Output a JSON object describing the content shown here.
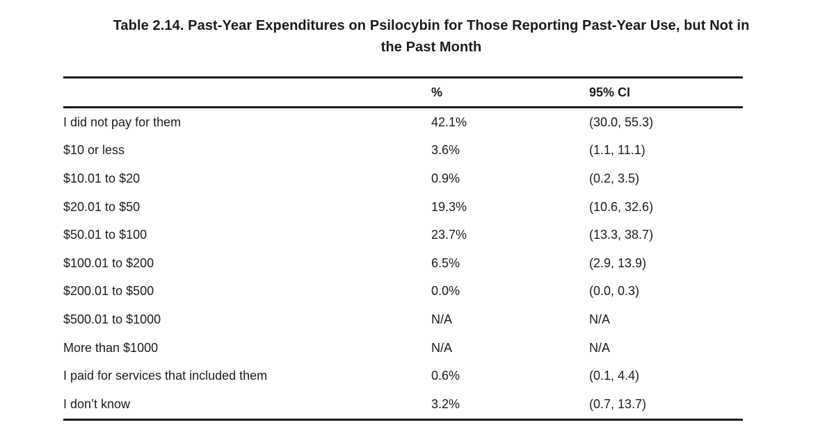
{
  "title": {
    "line1": "Table 2.14. Past-Year Expenditures on Psilocybin for Those Reporting Past-Year Use, but Not in",
    "line2": "the Past Month",
    "full": "Table 2.14. Past-Year Expenditures on Psilocybin for Those Reporting Past-Year Use, but Not in the Past Month"
  },
  "table": {
    "columns": {
      "label": "",
      "pct": "%",
      "ci": "95% CI"
    },
    "rows": [
      {
        "label": "I did not pay for them",
        "pct": "42.1%",
        "ci": "(30.0, 55.3)"
      },
      {
        "label": "$10 or less",
        "pct": "3.6%",
        "ci": "(1.1, 11.1)"
      },
      {
        "label": "$10.01 to $20",
        "pct": "0.9%",
        "ci": "(0.2, 3.5)"
      },
      {
        "label": "$20.01 to $50",
        "pct": "19.3%",
        "ci": "(10.6, 32.6)"
      },
      {
        "label": "$50.01 to $100",
        "pct": "23.7%",
        "ci": "(13.3, 38.7)"
      },
      {
        "label": "$100.01 to $200",
        "pct": "6.5%",
        "ci": "(2.9, 13.9)"
      },
      {
        "label": "$200.01 to $500",
        "pct": "0.0%",
        "ci": "(0.0, 0.3)"
      },
      {
        "label": "$500.01 to $1000",
        "pct": "N/A",
        "ci": "N/A"
      },
      {
        "label": "More than $1000",
        "pct": "N/A",
        "ci": "N/A"
      },
      {
        "label": "I paid for services that included them",
        "pct": "0.6%",
        "ci": "(0.1, 4.4)"
      },
      {
        "label": "I don’t know",
        "pct": "3.2%",
        "ci": "(0.7, 13.7)"
      }
    ]
  },
  "colors": {
    "text": "#1b1b1b",
    "rule": "#1a1a1a",
    "background": "#ffffff"
  }
}
